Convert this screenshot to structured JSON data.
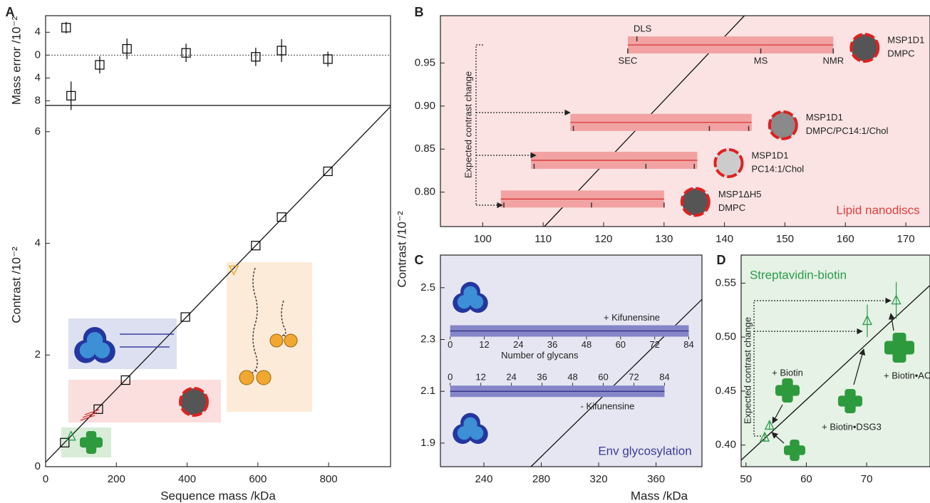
{
  "chart_data": [
    {
      "type": "scatter",
      "label": "A",
      "ylabel": "Mass error /10⁻²",
      "xlim": [
        0,
        975
      ],
      "ylim": [
        -8.8,
        6.9
      ],
      "yticks": [
        4,
        0,
        {
          "value": -4,
          "label": "4"
        },
        {
          "value": -8,
          "label": "8"
        }
      ],
      "x": [
        58,
        72,
        153,
        230,
        397,
        594,
        667,
        798
      ],
      "values": [
        4.8,
        -7.1,
        -1.7,
        1.1,
        0.4,
        -0.3,
        0.8,
        -0.7
      ],
      "errors": [
        1,
        2.5,
        1.5,
        1.8,
        1.6,
        1.6,
        2,
        1.3
      ],
      "marker": "square",
      "color": "#000000",
      "reference_line": 0
    },
    {
      "type": "scatter",
      "xlabel": "Sequence mass /kDa",
      "ylabel": "Contrast /10⁻²",
      "xlim": [
        0,
        975
      ],
      "ylim": [
        0,
        6.47
      ],
      "xticks": [
        0,
        200,
        400,
        600,
        800
      ],
      "yticks": [
        0,
        2,
        4,
        6
      ],
      "x": [
        54,
        149,
        226,
        395,
        594,
        667,
        798
      ],
      "values": [
        0.43,
        1.03,
        1.55,
        2.68,
        3.96,
        4.47,
        5.29
      ],
      "marker": "square",
      "color": "#000000",
      "extra_points": [
        {
          "x": 72,
          "y": 0.54,
          "marker": "triangle",
          "color": "#2a9a4a"
        },
        {
          "x": 532,
          "y": 3.53,
          "marker": "triangle-down",
          "color": "#e8a020"
        }
      ],
      "fit": {
        "x": [
          0,
          975
        ],
        "y": [
          0.08,
          6.45
        ]
      }
    },
    {
      "type": "range",
      "label": "B",
      "ylabel": "Contrast /10⁻²",
      "xlim": [
        93,
        174
      ],
      "ylim": [
        0.76,
        1.005
      ],
      "xticks": [
        100,
        110,
        120,
        130,
        140,
        150,
        160,
        170
      ],
      "yticks": [
        {
          "value": 0.8,
          "label": "0.80"
        },
        0.85,
        {
          "value": 0.9,
          "label": "0.90"
        },
        0.95
      ],
      "background": "#fbe3e3",
      "bar_color": "#f2a2a2",
      "line_color": "#d42a2a",
      "bars": [
        {
          "labels": [
            "MSP1D1",
            "DMPC"
          ],
          "y": 0.971,
          "x": [
            124,
            158
          ],
          "disc_fill": "#555555",
          "marks": [
            124,
            125.5,
            146,
            158
          ],
          "mark_labels": [
            "SEC",
            "DLS",
            "MS",
            "NMR"
          ]
        },
        {
          "labels": [
            "MSP1D1",
            "DMPC/PC14:1/Chol"
          ],
          "y": 0.881,
          "x": [
            114.5,
            144.5
          ],
          "disc_fill": "#8a8a8a",
          "marks": [
            115,
            137.5,
            144
          ]
        },
        {
          "labels": [
            "MSP1D1",
            "PC14:1/Chol"
          ],
          "y": 0.837,
          "x": [
            108,
            135.5
          ],
          "disc_fill": "#cccccc",
          "marks": [
            108.5,
            127,
            135
          ]
        },
        {
          "labels": [
            "MSP1ΔH5",
            "DMPC"
          ],
          "y": 0.792,
          "x": [
            103,
            130
          ],
          "disc_fill": "#555555",
          "marks": [
            103.5,
            118,
            130
          ]
        }
      ],
      "fit": {
        "x": [
          110.2,
          143.3
        ],
        "y": [
          0.76,
          1.005
        ]
      },
      "annotations": [
        "Expected contrast change",
        "Lipid nanodiscs"
      ]
    },
    {
      "type": "range",
      "label": "C",
      "xlabel": "Mass /kDa",
      "xlim": [
        209.7,
        392
      ],
      "ylim": [
        1.809,
        2.626
      ],
      "xticks": [
        240,
        280,
        320,
        360
      ],
      "yticks": [
        1.9,
        2.1,
        2.3,
        2.5
      ],
      "background": "#e6e6f2",
      "bar_color": "#8585c8",
      "line_color": "#2b2b80",
      "bars": [
        {
          "labels": [
            "+ Kifunensine"
          ],
          "y": 2.333,
          "x": [
            216.5,
            382.8
          ]
        },
        {
          "labels": [
            "- Kifunensine"
          ],
          "y": 2.1,
          "x": [
            216.5,
            365.9
          ]
        }
      ],
      "glycan_ticks": [
        0,
        12,
        24,
        36,
        48,
        60,
        72,
        84
      ],
      "glycan_label": "Number of glycans",
      "fit": {
        "x": [
          272.8,
          392
        ],
        "y": [
          1.809,
          2.455
        ]
      },
      "annotations": [
        "Env glycosylation"
      ]
    },
    {
      "type": "scatter",
      "label": "D",
      "xlim": [
        49.2,
        80.5
      ],
      "ylim": [
        0.38,
        0.576
      ],
      "xticks": [
        50,
        60,
        70
      ],
      "yticks": [
        {
          "value": 0.4,
          "label": "0.40"
        },
        0.45,
        {
          "value": 0.5,
          "label": "0.50"
        },
        0.55
      ],
      "background": "#e5f2e5",
      "x": [
        53.1,
        53.9,
        70.1,
        74.9
      ],
      "values": [
        0.407,
        0.418,
        0.515,
        0.534
      ],
      "errors": [
        0.004,
        0.004,
        0.015,
        0.017
      ],
      "marker": "triangle",
      "color": "#2a9a4a",
      "fit": {
        "x": [
          49.2,
          80.5
        ],
        "y": [
          0.386,
          0.548
        ]
      },
      "annotations": [
        "Streptavidin-biotin",
        "Expected contrast change",
        "+ Biotin",
        "+ Biotin•DSG3",
        "+ Biotin•ACTH"
      ]
    }
  ]
}
